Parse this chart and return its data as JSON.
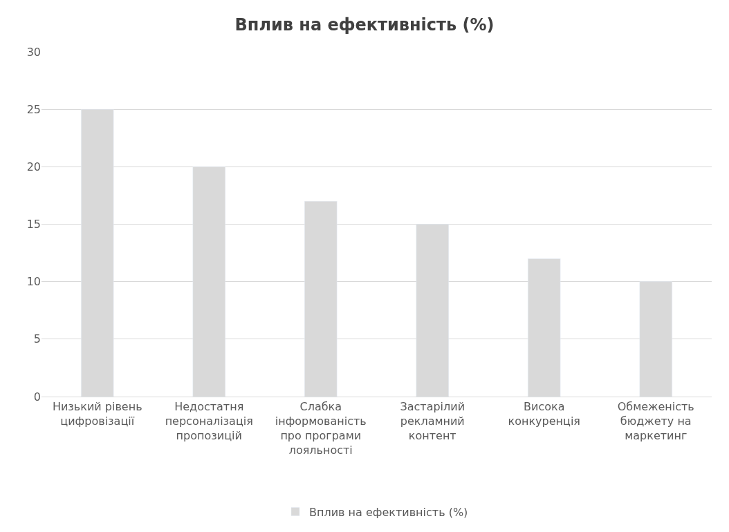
{
  "chart_data": {
    "type": "bar",
    "title": "Вплив на ефективність (%)",
    "categories": [
      "Низький рівень цифровізації",
      "Недостатня персоналізація пропозицій",
      "Слабка інформованість про програми лояльності",
      "Застарілий рекламний контент",
      "Висока конкуренція",
      "Обмеженість бюджету на маркетинг"
    ],
    "series": [
      {
        "name": "Вплив на ефективність (%)",
        "color": "#d9d9d9",
        "values": [
          25,
          20,
          17,
          15,
          12,
          10
        ]
      }
    ],
    "ylim": [
      0,
      30
    ],
    "yticks": [
      0,
      5,
      10,
      15,
      20,
      25,
      30
    ],
    "grid": "y",
    "legend": "bottom"
  }
}
